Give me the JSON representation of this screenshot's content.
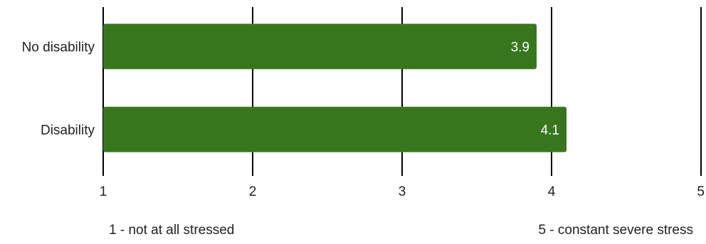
{
  "chart_data": {
    "type": "bar",
    "orientation": "horizontal",
    "categories": [
      "No disability",
      "Disability"
    ],
    "values": [
      3.9,
      4.1
    ],
    "data_labels": [
      "3.9",
      "4.1"
    ],
    "xlim": [
      1,
      5
    ],
    "x_ticks": [
      "1",
      "2",
      "3",
      "4",
      "5"
    ],
    "grid": true,
    "legend": "none",
    "bar_color": "#38761d",
    "grid_color": "#000000",
    "label_color": "#ffffff",
    "scale_notes": {
      "low": "1 - not at all stressed",
      "high": "5 - constant severe stress"
    }
  }
}
